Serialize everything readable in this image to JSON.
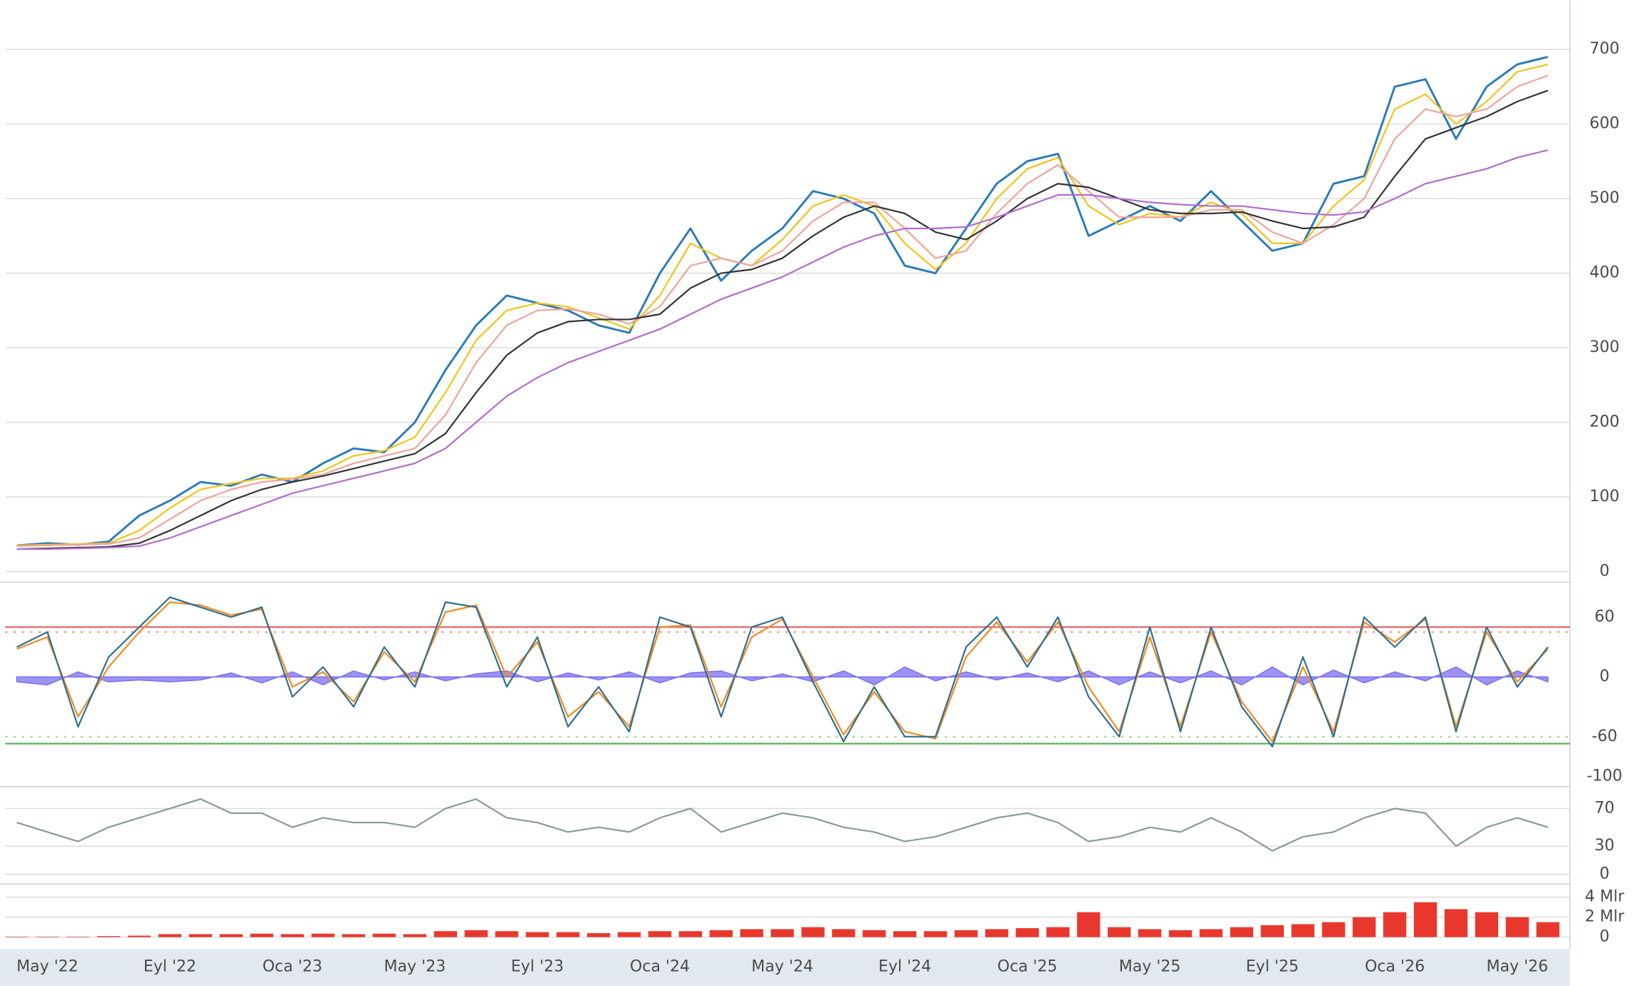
{
  "categories": [
    null,
    "May '22",
    null,
    null,
    null,
    "Eyl '22",
    null,
    null,
    null,
    "Oca '23",
    null,
    null,
    null,
    "May '23",
    null,
    null,
    null,
    "Eyl '23",
    null,
    null,
    null,
    "Oca '24",
    null,
    null,
    null,
    "May '24",
    null,
    null,
    null,
    "Eyl '24",
    null,
    null,
    null,
    "Oca '25",
    null,
    null,
    null,
    "May '25",
    null,
    null,
    null,
    "Eyl '25",
    null,
    null,
    null,
    "Oca '26",
    null,
    null,
    null,
    "May '26",
    null
  ],
  "chart_data": [
    {
      "type": "line",
      "ylim": [
        -10,
        766
      ],
      "yticks": [
        0,
        100,
        200,
        300,
        400,
        500,
        600,
        700
      ],
      "grid": true,
      "series": [
        {
          "color": "#2b7bb9",
          "values": [
            35,
            38,
            36,
            40,
            75,
            95,
            120,
            115,
            130,
            120,
            145,
            165,
            160,
            200,
            270,
            330,
            370,
            360,
            350,
            330,
            320,
            400,
            460,
            390,
            430,
            460,
            510,
            500,
            480,
            410,
            400,
            460,
            520,
            550,
            560,
            450,
            470,
            490,
            470,
            510,
            470,
            430,
            440,
            520,
            530,
            650,
            660,
            580,
            650,
            680,
            690
          ]
        },
        {
          "color": "#f0c419",
          "values": [
            35,
            36,
            37,
            38,
            55,
            85,
            110,
            118,
            125,
            125,
            135,
            155,
            162,
            180,
            240,
            310,
            350,
            360,
            355,
            340,
            325,
            370,
            440,
            420,
            410,
            445,
            490,
            505,
            490,
            440,
            405,
            440,
            500,
            540,
            555,
            490,
            465,
            480,
            475,
            495,
            480,
            440,
            440,
            490,
            525,
            620,
            640,
            600,
            630,
            670,
            680
          ]
        },
        {
          "color": "#eba59c",
          "values": [
            34,
            35,
            36,
            37,
            45,
            70,
            95,
            110,
            120,
            124,
            130,
            145,
            155,
            165,
            210,
            280,
            330,
            350,
            352,
            345,
            332,
            355,
            410,
            420,
            410,
            430,
            470,
            495,
            495,
            460,
            420,
            430,
            480,
            520,
            545,
            510,
            475,
            475,
            475,
            485,
            485,
            455,
            440,
            465,
            500,
            580,
            620,
            610,
            620,
            650,
            665
          ]
        },
        {
          "color": "#333333",
          "values": [
            30,
            31,
            32,
            33,
            38,
            55,
            75,
            95,
            110,
            120,
            128,
            138,
            148,
            158,
            185,
            240,
            290,
            320,
            335,
            338,
            338,
            345,
            380,
            400,
            405,
            420,
            450,
            475,
            490,
            480,
            455,
            445,
            470,
            500,
            520,
            515,
            500,
            485,
            480,
            480,
            482,
            470,
            460,
            462,
            475,
            530,
            580,
            595,
            610,
            630,
            645
          ]
        },
        {
          "color": "#b26ccf",
          "values": [
            30,
            30,
            31,
            32,
            34,
            45,
            60,
            75,
            90,
            105,
            115,
            125,
            135,
            145,
            165,
            200,
            235,
            260,
            280,
            295,
            310,
            325,
            345,
            365,
            380,
            395,
            415,
            435,
            450,
            460,
            460,
            462,
            475,
            490,
            505,
            505,
            500,
            495,
            492,
            490,
            490,
            485,
            480,
            478,
            482,
            500,
            520,
            530,
            540,
            555,
            565
          ]
        }
      ]
    },
    {
      "type": "line",
      "ylim": [
        -108,
        92
      ],
      "yticks": [
        60,
        0,
        -60,
        -100
      ],
      "grid": false,
      "levels": [
        {
          "value": 50,
          "color": "#e06060",
          "dash": false
        },
        {
          "value": 45,
          "color": "#e08a8a",
          "dash": true
        },
        {
          "value": -60,
          "color": "#a8c8a0",
          "dash": true
        },
        {
          "value": -67,
          "color": "#4caf50",
          "dash": false
        }
      ],
      "series": [
        {
          "type": "area",
          "color": "#7b6ff0",
          "values": [
            -5,
            -8,
            5,
            -5,
            -3,
            -5,
            -3,
            4,
            -6,
            5,
            -8,
            6,
            -3,
            5,
            -4,
            3,
            6,
            -5,
            4,
            -3,
            5,
            -6,
            4,
            6,
            -4,
            3,
            -5,
            6,
            -8,
            10,
            -4,
            5,
            -3,
            4,
            -5,
            6,
            -8,
            5,
            -6,
            6,
            -8,
            10,
            -8,
            7,
            -6,
            5,
            -4,
            10,
            -8,
            6,
            -5
          ]
        },
        {
          "color": "#f08a24",
          "values": [
            28,
            40,
            -40,
            10,
            45,
            75,
            72,
            62,
            68,
            -10,
            5,
            -25,
            25,
            -5,
            65,
            72,
            0,
            35,
            -40,
            -15,
            -50,
            50,
            52,
            -30,
            40,
            58,
            0,
            -58,
            -15,
            -55,
            -62,
            20,
            55,
            15,
            55,
            -10,
            -55,
            40,
            -50,
            45,
            -25,
            -65,
            10,
            -55,
            55,
            35,
            58,
            -50,
            45,
            -5,
            28
          ]
        },
        {
          "color": "#2f6f8f",
          "values": [
            30,
            45,
            -50,
            20,
            50,
            80,
            70,
            60,
            70,
            -20,
            10,
            -30,
            30,
            -10,
            75,
            70,
            -10,
            40,
            -50,
            -10,
            -55,
            60,
            50,
            -40,
            50,
            60,
            -5,
            -65,
            -10,
            -60,
            -60,
            30,
            60,
            10,
            60,
            -20,
            -60,
            50,
            -55,
            50,
            -30,
            -70,
            20,
            -60,
            60,
            30,
            60,
            -55,
            50,
            -10,
            30
          ]
        }
      ]
    },
    {
      "type": "line",
      "ylim": [
        -7,
        91
      ],
      "yticks": [
        70,
        30,
        0
      ],
      "grid": true,
      "series": [
        {
          "color": "#8a9a96",
          "values": [
            55,
            45,
            35,
            50,
            60,
            70,
            80,
            65,
            65,
            50,
            60,
            55,
            55,
            50,
            70,
            80,
            60,
            55,
            45,
            50,
            45,
            60,
            70,
            45,
            55,
            65,
            60,
            50,
            45,
            35,
            40,
            50,
            60,
            65,
            55,
            35,
            40,
            50,
            45,
            60,
            45,
            25,
            40,
            45,
            60,
            70,
            65,
            30,
            50,
            60,
            50
          ]
        }
      ]
    },
    {
      "type": "bar",
      "ylim": [
        -1200000000,
        5000000000
      ],
      "yticks": [
        {
          "value": 4000000000,
          "label": "4 Mlr"
        },
        {
          "value": 2000000000,
          "label": "2 Mlr"
        },
        0
      ],
      "grid": true,
      "series": [
        {
          "color": "#e8382e",
          "values": [
            50000000.0,
            50000000.0,
            50000000.0,
            100000000.0,
            150000000.0,
            300000000.0,
            300000000.0,
            300000000.0,
            350000000.0,
            300000000.0,
            350000000.0,
            300000000.0,
            350000000.0,
            300000000.0,
            600000000.0,
            700000000.0,
            600000000.0,
            500000000.0,
            500000000.0,
            400000000.0,
            500000000.0,
            600000000.0,
            600000000.0,
            700000000.0,
            800000000.0,
            800000000.0,
            1000000000.0,
            800000000.0,
            700000000.0,
            600000000.0,
            600000000.0,
            700000000.0,
            800000000.0,
            900000000.0,
            1000000000.0,
            2500000000.0,
            1000000000.0,
            800000000.0,
            700000000.0,
            800000000.0,
            1000000000.0,
            1200000000.0,
            1300000000.0,
            1500000000.0,
            2000000000.0,
            2500000000.0,
            3500000000.0,
            2800000000.0,
            2500000000.0,
            2000000000.0,
            1500000000.0
          ]
        }
      ]
    }
  ]
}
